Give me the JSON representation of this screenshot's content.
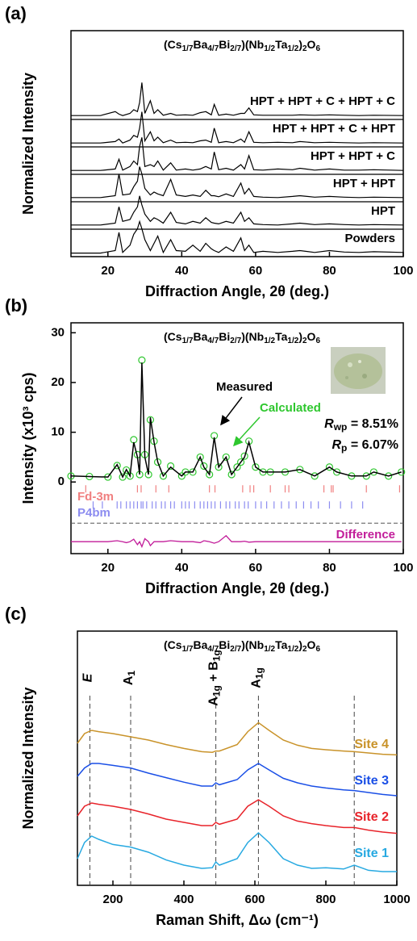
{
  "chart_data": [
    {
      "type": "line",
      "panel_label": "(a)",
      "title": [
        "(Cs",
        "1/7",
        "Ba",
        "4/7",
        "Bi",
        "2/7",
        ")(Nb",
        "1/2",
        "Ta",
        "1/2",
        ")",
        "2",
        "O",
        "6"
      ],
      "xlabel": "Diffraction Angle, 2θ (deg.)",
      "ylabel": "Normalized Intensity",
      "xlim": [
        10,
        100
      ],
      "xticks": [
        20,
        40,
        60,
        80,
        100
      ],
      "x": [
        10,
        18,
        22,
        23,
        24,
        26,
        27,
        28,
        28.6,
        29.2,
        30,
        31.5,
        32.5,
        33.5,
        35,
        37,
        38.5,
        41,
        43,
        45,
        46.5,
        48,
        48.8,
        50,
        52,
        54,
        56,
        57,
        58.2,
        59.5,
        62,
        66,
        70,
        72,
        76,
        80,
        84,
        88,
        92,
        100
      ],
      "series": [
        {
          "name": "Powders",
          "color": "#000000",
          "values": [
            0.03,
            0.03,
            0.1,
            0.6,
            0.05,
            0.25,
            0.55,
            0.7,
            0.9,
            0.7,
            0.4,
            0.1,
            0.3,
            0.5,
            0.05,
            0.4,
            0.1,
            0.08,
            0.25,
            0.08,
            0.3,
            0.15,
            0.1,
            0.05,
            0.2,
            0.08,
            0.45,
            0.1,
            0.25,
            0.05,
            0.08,
            0.05,
            0.08,
            0.1,
            0.05,
            0.1,
            0.06,
            0.05,
            0.07,
            0.05
          ]
        },
        {
          "name": "HPT",
          "color": "#000000",
          "values": [
            0.05,
            0.05,
            0.1,
            0.55,
            0.15,
            0.2,
            0.4,
            0.55,
            0.85,
            0.6,
            0.35,
            0.15,
            0.25,
            0.2,
            0.1,
            0.4,
            0.12,
            0.08,
            0.15,
            0.1,
            0.25,
            0.12,
            0.1,
            0.08,
            0.15,
            0.1,
            0.4,
            0.15,
            0.25,
            0.08,
            0.06,
            0.05,
            0.08,
            0.1,
            0.06,
            0.08,
            0.06,
            0.05,
            0.06,
            0.05
          ]
        },
        {
          "name": "HPT + HPT",
          "color": "#000000",
          "values": [
            0.05,
            0.05,
            0.1,
            0.7,
            0.12,
            0.15,
            0.35,
            0.5,
            0.9,
            0.7,
            0.3,
            0.12,
            0.2,
            0.15,
            0.1,
            0.55,
            0.12,
            0.08,
            0.12,
            0.08,
            0.25,
            0.1,
            0.1,
            0.07,
            0.15,
            0.08,
            0.45,
            0.15,
            0.3,
            0.08,
            0.06,
            0.05,
            0.08,
            0.1,
            0.06,
            0.08,
            0.06,
            0.05,
            0.06,
            0.05
          ]
        },
        {
          "name": "HPT + HPT + C",
          "color": "#000000",
          "values": [
            0.04,
            0.04,
            0.08,
            0.35,
            0.05,
            0.15,
            0.3,
            0.2,
            0.7,
            0.95,
            0.15,
            0.2,
            0.15,
            0.3,
            0.05,
            0.25,
            0.05,
            0.08,
            0.05,
            0.08,
            0.15,
            0.08,
            0.55,
            0.06,
            0.1,
            0.05,
            0.2,
            0.08,
            0.45,
            0.06,
            0.05,
            0.08,
            0.06,
            0.1,
            0.05,
            0.08,
            0.05,
            0.05,
            0.06,
            0.04
          ]
        },
        {
          "name": "HPT + HPT + C + HPT",
          "color": "#000000",
          "values": [
            0.04,
            0.04,
            0.08,
            0.15,
            0.04,
            0.12,
            0.25,
            0.2,
            0.45,
            0.9,
            0.1,
            0.35,
            0.1,
            0.2,
            0.05,
            0.12,
            0.05,
            0.06,
            0.05,
            0.1,
            0.12,
            0.06,
            0.45,
            0.05,
            0.08,
            0.05,
            0.15,
            0.06,
            0.35,
            0.06,
            0.05,
            0.06,
            0.05,
            0.08,
            0.05,
            0.06,
            0.05,
            0.04,
            0.05,
            0.04
          ]
        },
        {
          "name": "HPT + HPT + C + HPT + C",
          "color": "#000000",
          "values": [
            0.04,
            0.04,
            0.15,
            0.08,
            0.04,
            0.1,
            0.2,
            0.15,
            0.4,
            0.95,
            0.1,
            0.45,
            0.1,
            0.2,
            0.05,
            0.1,
            0.05,
            0.06,
            0.05,
            0.12,
            0.15,
            0.06,
            0.35,
            0.05,
            0.08,
            0.05,
            0.1,
            0.1,
            0.25,
            0.06,
            0.05,
            0.05,
            0.05,
            0.06,
            0.05,
            0.06,
            0.05,
            0.04,
            0.05,
            0.04
          ]
        }
      ]
    },
    {
      "type": "rietveld",
      "panel_label": "(b)",
      "title": [
        "(Cs",
        "1/7",
        "Ba",
        "4/7",
        "Bi",
        "2/7",
        ")(Nb",
        "1/2",
        "Ta",
        "1/2",
        ")",
        "2",
        "O",
        "6"
      ],
      "xlabel": "Diffraction Angle, 2θ (deg.)",
      "ylabel": "Intensity (x10³ cps)",
      "xlim": [
        10,
        100
      ],
      "xticks": [
        20,
        40,
        60,
        80,
        100
      ],
      "ylim": [
        -14.4,
        32
      ],
      "yticks": [
        0,
        10,
        20,
        30
      ],
      "x": [
        10,
        15,
        20,
        22.5,
        24,
        25,
        26,
        27,
        28,
        28.6,
        29.2,
        30,
        31,
        31.5,
        32.5,
        33.5,
        35,
        37,
        40,
        41,
        43,
        45,
        46,
        47.5,
        48.8,
        50,
        52,
        53.5,
        55,
        56,
        57,
        58.2,
        60,
        62,
        64,
        68,
        72,
        76,
        80,
        82,
        86,
        90,
        92,
        96,
        99.5
      ],
      "series": [
        {
          "name": "Measured",
          "color": "#000000",
          "values": [
            1.2,
            1.1,
            1,
            3.5,
            1,
            2.5,
            1.2,
            8,
            5,
            1.5,
            24,
            5,
            1.5,
            13,
            8,
            4,
            1.2,
            3,
            1.2,
            2,
            2,
            5,
            3,
            1.5,
            9,
            3,
            5,
            1.5,
            3,
            4,
            5,
            8,
            3,
            2,
            2,
            2,
            2.5,
            1.2,
            3,
            2,
            1.2,
            1.2,
            2,
            1.2,
            2
          ]
        },
        {
          "name": "Calculated",
          "color": "#2ec72e",
          "values": [
            1.2,
            1.1,
            1,
            3.3,
            1,
            2.4,
            1.2,
            8.5,
            5.5,
            1.5,
            24.5,
            5.5,
            1.5,
            12.5,
            8.2,
            4,
            1.2,
            3.2,
            1.2,
            2,
            2,
            5,
            3.2,
            1.5,
            9.3,
            3,
            5,
            1.5,
            3,
            4,
            5.2,
            8.2,
            3,
            2,
            2,
            2,
            2.5,
            1.2,
            3,
            2,
            1.2,
            1.2,
            2,
            1.2,
            2
          ]
        },
        {
          "name": "Difference",
          "color": "#c21d9a",
          "values": [
            -12,
            -12,
            -12,
            -11.8,
            -12,
            -12.2,
            -12,
            -11.5,
            -12.6,
            -12,
            -13,
            -11.4,
            -12,
            -12.8,
            -12,
            -12,
            -12,
            -11.8,
            -12,
            -12,
            -12,
            -12.2,
            -11.8,
            -12,
            -12.3,
            -12,
            -10.8,
            -12,
            -12,
            -12,
            -11.9,
            -12.1,
            -12,
            -12,
            -12,
            -12,
            -12,
            -12,
            -12,
            -12,
            -12,
            -12,
            -12,
            -12,
            -12
          ]
        }
      ],
      "reflections": [
        {
          "name": "Fd-3m",
          "color": "#f08080",
          "x": [
            14,
            28,
            29,
            33,
            36.5,
            47.5,
            49,
            56.5,
            58.5,
            59.5,
            64,
            68,
            69,
            78.5,
            80.5,
            81,
            90,
            99
          ]
        },
        {
          "name": "P4bm",
          "color": "#8c8cf0",
          "x": [
            16,
            18.5,
            22.5,
            23.5,
            25,
            26,
            27,
            28,
            29,
            29.5,
            30.5,
            32,
            33,
            34.5,
            35.5,
            37,
            38,
            40,
            41,
            42,
            43.5,
            45,
            46,
            47,
            48,
            49,
            50.5,
            52,
            53,
            54.5,
            55.5,
            57,
            58,
            60,
            61.5,
            63,
            65,
            67,
            69,
            71,
            73,
            75,
            77,
            80,
            83,
            86,
            89
          ]
        }
      ],
      "fit_stats": [
        [
          "R",
          "wp",
          " = 8.51%"
        ],
        [
          "R",
          "p",
          " = 6.07%"
        ]
      ]
    },
    {
      "type": "raman",
      "panel_label": "(c)",
      "title": [
        "(Cs",
        "1/7",
        "Ba",
        "4/7",
        "Bi",
        "2/7",
        ")(Nb",
        "1/2",
        "Ta",
        "1/2",
        ")",
        "2",
        "O",
        "6"
      ],
      "xlabel": "Raman Shift, Δω (cm⁻¹)",
      "ylabel": "Normalized Intensity",
      "xlim": [
        100,
        1000
      ],
      "xticks": [
        200,
        400,
        600,
        800,
        1000
      ],
      "x": [
        100,
        120,
        140,
        160,
        200,
        250,
        300,
        350,
        400,
        450,
        480,
        490,
        500,
        550,
        580,
        610,
        640,
        680,
        720,
        760,
        800,
        850,
        880,
        920,
        960,
        1000
      ],
      "series": [
        {
          "name": "Site 1",
          "color": "#27a9e1",
          "values": [
            0.2,
            0.45,
            0.55,
            0.5,
            0.42,
            0.38,
            0.3,
            0.18,
            0.1,
            0.05,
            0.06,
            0.15,
            0.1,
            0.2,
            0.45,
            0.6,
            0.45,
            0.2,
            0.1,
            0.05,
            0.06,
            0.04,
            0.1,
            0.02,
            0,
            0
          ]
        },
        {
          "name": "Site 2",
          "color": "#e8232a",
          "values": [
            0.3,
            0.45,
            0.5,
            0.48,
            0.45,
            0.4,
            0.33,
            0.25,
            0.2,
            0.15,
            0.15,
            0.2,
            0.17,
            0.25,
            0.45,
            0.55,
            0.45,
            0.3,
            0.22,
            0.18,
            0.15,
            0.12,
            0.12,
            0.08,
            0.05,
            0.03
          ]
        },
        {
          "name": "Site 3",
          "color": "#1a4fe6",
          "values": [
            0.35,
            0.48,
            0.55,
            0.55,
            0.52,
            0.48,
            0.4,
            0.33,
            0.26,
            0.2,
            0.2,
            0.25,
            0.22,
            0.3,
            0.45,
            0.55,
            0.45,
            0.32,
            0.25,
            0.2,
            0.17,
            0.14,
            0.13,
            0.1,
            0.07,
            0.05
          ]
        },
        {
          "name": "Site 4",
          "color": "#c9932a",
          "values": [
            0.3,
            0.45,
            0.5,
            0.48,
            0.45,
            0.4,
            0.35,
            0.28,
            0.22,
            0.17,
            0.16,
            0.18,
            0.18,
            0.28,
            0.48,
            0.62,
            0.5,
            0.35,
            0.27,
            0.22,
            0.2,
            0.18,
            0.17,
            0.15,
            0.13,
            0.12
          ]
        }
      ],
      "modes": [
        {
          "position": 135,
          "label": [
            "E"
          ]
        },
        {
          "position": 250,
          "label": [
            "A",
            "1"
          ]
        },
        {
          "position": 490,
          "label": [
            "A",
            "1g",
            " + B",
            "1g"
          ]
        },
        {
          "position": 610,
          "label": [
            "A",
            "1g"
          ]
        },
        {
          "position": 880
        }
      ]
    }
  ]
}
